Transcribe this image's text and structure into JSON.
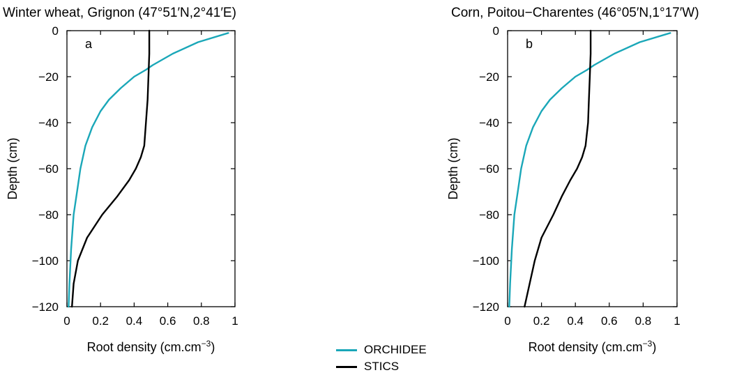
{
  "chart_data": [
    {
      "type": "line",
      "title": "Winter wheat, Grignon (47°51′N,2°41′E)",
      "panel_label": "a",
      "xlabel": "Root density (cm.cm",
      "xlabel_sup": "−3",
      "xlabel_close": ")",
      "ylabel": "Depth (cm)",
      "xlim": [
        0,
        1
      ],
      "ylim": [
        -120,
        0
      ],
      "xticks": [
        0,
        0.2,
        0.4,
        0.6,
        0.8,
        1
      ],
      "xtick_labels": [
        "0",
        "0.2",
        "0.4",
        "0.6",
        "0.8",
        "1"
      ],
      "yticks": [
        0,
        -20,
        -40,
        -60,
        -80,
        -100,
        -120
      ],
      "ytick_labels": [
        "0",
        "−20",
        "−40",
        "−60",
        "−80",
        "−100",
        "−120"
      ],
      "grid": false,
      "series": [
        {
          "name": "ORCHIDEE",
          "x": [
            0.96,
            0.78,
            0.63,
            0.51,
            0.47,
            0.4,
            0.32,
            0.25,
            0.2,
            0.15,
            0.11,
            0.08,
            0.06,
            0.04,
            0.025,
            0.015,
            0.01
          ],
          "y": [
            -1,
            -5,
            -10,
            -15,
            -17,
            -20,
            -25,
            -30,
            -35,
            -42,
            -50,
            -60,
            -70,
            -80,
            -95,
            -110,
            -120
          ]
        },
        {
          "name": "STICS",
          "x": [
            0.49,
            0.49,
            0.485,
            0.48,
            0.47,
            0.46,
            0.44,
            0.41,
            0.37,
            0.3,
            0.21,
            0.12,
            0.065,
            0.04,
            0.03
          ],
          "y": [
            0,
            -10,
            -20,
            -30,
            -40,
            -50,
            -55,
            -60,
            -65,
            -72,
            -80,
            -90,
            -100,
            -110,
            -120
          ]
        }
      ]
    },
    {
      "type": "line",
      "title": "Corn, Poitou−Charentes (46°05′N,1°17′W)",
      "panel_label": "b",
      "xlabel": "Root density (cm.cm",
      "xlabel_sup": "−3",
      "xlabel_close": ")",
      "ylabel": "Depth (cm)",
      "xlim": [
        0,
        1
      ],
      "ylim": [
        -120,
        0
      ],
      "xticks": [
        0,
        0.2,
        0.4,
        0.6,
        0.8,
        1
      ],
      "xtick_labels": [
        "0",
        "0.2",
        "0.4",
        "0.6",
        "0.8",
        "1"
      ],
      "yticks": [
        0,
        -20,
        -40,
        -60,
        -80,
        -100,
        -120
      ],
      "ytick_labels": [
        "0",
        "−20",
        "−40",
        "−60",
        "−80",
        "−100",
        "−120"
      ],
      "grid": false,
      "series": [
        {
          "name": "ORCHIDEE",
          "x": [
            0.96,
            0.78,
            0.63,
            0.51,
            0.47,
            0.4,
            0.32,
            0.25,
            0.2,
            0.15,
            0.11,
            0.08,
            0.06,
            0.04,
            0.025,
            0.015,
            0.01
          ],
          "y": [
            -1,
            -5,
            -10,
            -15,
            -17,
            -20,
            -25,
            -30,
            -35,
            -42,
            -50,
            -60,
            -70,
            -80,
            -95,
            -110,
            -120
          ]
        },
        {
          "name": "STICS",
          "x": [
            0.49,
            0.49,
            0.485,
            0.48,
            0.475,
            0.46,
            0.44,
            0.41,
            0.37,
            0.32,
            0.27,
            0.2,
            0.16,
            0.13,
            0.1
          ],
          "y": [
            0,
            -10,
            -20,
            -30,
            -40,
            -50,
            -55,
            -60,
            -65,
            -72,
            -80,
            -90,
            -100,
            -110,
            -120
          ]
        }
      ]
    }
  ],
  "legend": {
    "placement": "bottom-center",
    "items": [
      {
        "name": "ORCHIDEE",
        "color": "#1aa7b8"
      },
      {
        "name": "STICS",
        "color": "#000000"
      }
    ]
  }
}
